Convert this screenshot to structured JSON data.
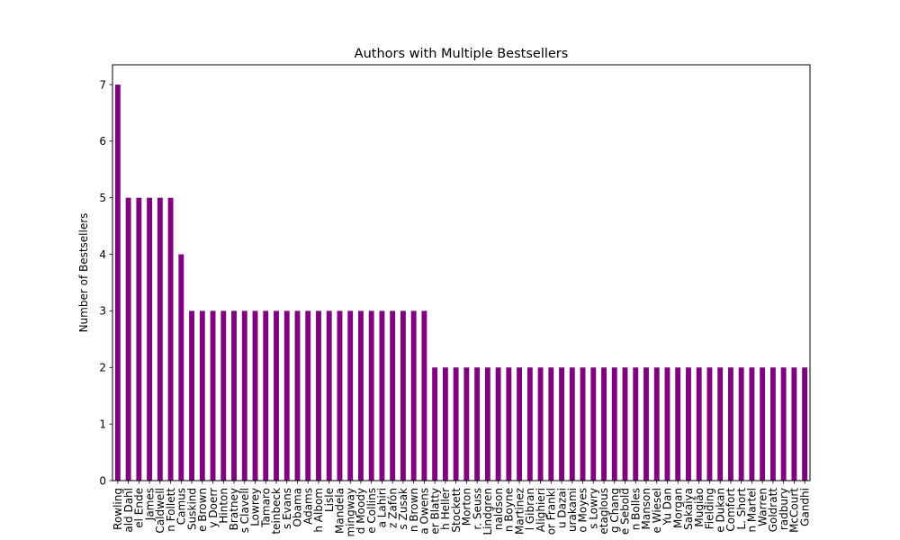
{
  "chart_data": {
    "type": "bar",
    "title": "Authors with Multiple Bestsellers",
    "xlabel": "",
    "ylabel": "Number of Bestsellers",
    "ylim": [
      0,
      7.35
    ],
    "yticks": [
      0,
      1,
      2,
      3,
      4,
      5,
      6,
      7
    ],
    "grid": false,
    "bar_color": "#800080",
    "categories": [
      "Rowling",
      "ald Dahl",
      "el Ende",
      "James",
      "Caldwell",
      "n Follett",
      "Camus",
      "Suskind",
      "e Brown",
      "y Doerr",
      "Hinton",
      "Bratney",
      "s Clavell",
      "Lowrey",
      "Tamaro",
      "teinbeck",
      "s Evans",
      "Obama",
      "Adams",
      "h Albom",
      "Lisle",
      "Mandela",
      "mingway",
      "d Moody",
      "e Collins",
      "a Lahiri",
      "z Zafón",
      "s Zusak",
      "n Brown",
      "a Owens",
      "er Blatty",
      "h Heller",
      "Stockett",
      "Morton",
      "r. Seuss",
      "Lindgren",
      "naldson",
      "n Boyne",
      "Martinez",
      "l Gibran",
      "Alighieri",
      "or Frankl",
      "u Dazai",
      "urakami",
      "o Moyes",
      "s Lowry",
      "etaglous",
      "g Chang",
      "e Sebold",
      "n Bolles",
      "Manson",
      "e Wiesel",
      "Yu Dan",
      "Morgan",
      "Sakaiya",
      "Mugião",
      "Fielding",
      "e Dukan",
      "Comfort",
      "L. Short",
      "n Martel",
      "Warren",
      "Goldratt",
      "radbury",
      "McCourt",
      "Gandhi"
    ],
    "values": [
      7,
      5,
      5,
      5,
      5,
      5,
      4,
      3,
      3,
      3,
      3,
      3,
      3,
      3,
      3,
      3,
      3,
      3,
      3,
      3,
      3,
      3,
      3,
      3,
      3,
      3,
      3,
      3,
      3,
      3,
      2,
      2,
      2,
      2,
      2,
      2,
      2,
      2,
      2,
      2,
      2,
      2,
      2,
      2,
      2,
      2,
      2,
      2,
      2,
      2,
      2,
      2,
      2,
      2,
      2,
      2,
      2,
      2,
      2,
      2,
      2,
      2,
      2,
      2,
      2,
      2
    ]
  }
}
